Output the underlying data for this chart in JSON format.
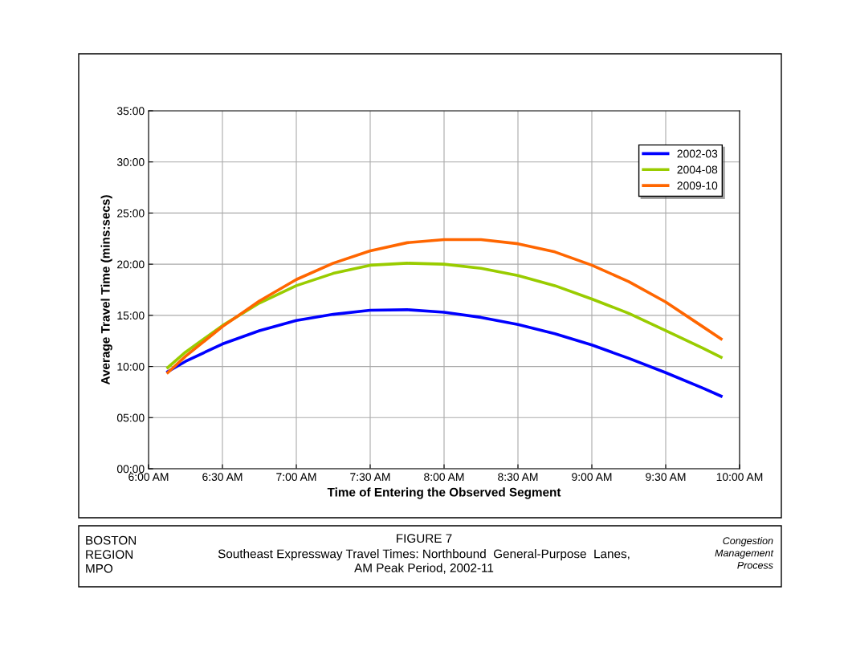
{
  "chart_data": {
    "type": "line",
    "title": "FIGURE 7",
    "subtitle": "Southeast Expressway Travel Times: Northbound  General-Purpose  Lanes,\nAM Peak Period, 2002-11",
    "xlabel": "Time of Entering the Observed Segment",
    "ylabel": "Average Travel Time (mins:secs)",
    "annotations": [
      "BOSTON\nREGION\nMPO",
      "Congestion\nManagement\nProcess"
    ],
    "x": [
      6.13,
      6.25,
      6.5,
      6.75,
      7,
      7.25,
      7.5,
      7.75,
      8,
      8.25,
      8.5,
      8.75,
      9,
      9.25,
      9.5,
      9.75,
      9.875
    ],
    "series": [
      {
        "name": "2002-03",
        "color": "#0000ff",
        "values": [
          9.5,
          10.5,
          12.2,
          13.5,
          14.5,
          15.1,
          15.5,
          15.55,
          15.3,
          14.8,
          14.1,
          13.2,
          12.1,
          10.8,
          9.4,
          7.9,
          7.1
        ]
      },
      {
        "name": "2004-08",
        "color": "#99cc00",
        "values": [
          9.9,
          11.4,
          14.0,
          16.2,
          17.9,
          19.1,
          19.9,
          20.1,
          20.0,
          19.6,
          18.9,
          17.9,
          16.6,
          15.2,
          13.5,
          11.8,
          10.9
        ]
      },
      {
        "name": "2009-10",
        "color": "#ff6600",
        "values": [
          9.4,
          11.0,
          13.9,
          16.4,
          18.5,
          20.1,
          21.3,
          22.1,
          22.4,
          22.4,
          22.0,
          21.2,
          19.9,
          18.3,
          16.3,
          13.9,
          12.7
        ]
      }
    ],
    "xlim": [
      6,
      10
    ],
    "xticks": [
      {
        "value": 6,
        "label": "6:00 AM"
      },
      {
        "value": 6.5,
        "label": "6:30 AM"
      },
      {
        "value": 7,
        "label": "7:00 AM"
      },
      {
        "value": 7.5,
        "label": "7:30 AM"
      },
      {
        "value": 8,
        "label": "8:00 AM"
      },
      {
        "value": 8.5,
        "label": "8:30 AM"
      },
      {
        "value": 9,
        "label": "9:00 AM"
      },
      {
        "value": 9.5,
        "label": "9:30 AM"
      },
      {
        "value": 10,
        "label": "10:00 AM"
      }
    ],
    "ylim": [
      0,
      35
    ],
    "yticks": [
      {
        "value": 0,
        "label": "00:00"
      },
      {
        "value": 5,
        "label": "05:00"
      },
      {
        "value": 10,
        "label": "10:00"
      },
      {
        "value": 15,
        "label": "15:00"
      },
      {
        "value": 20,
        "label": "20:00"
      },
      {
        "value": 25,
        "label": "25:00"
      },
      {
        "value": 30,
        "label": "30:00"
      },
      {
        "value": 35,
        "label": "35:00"
      }
    ],
    "grid": true,
    "legend": "top right",
    "marker": "none",
    "line_style": "solid"
  }
}
